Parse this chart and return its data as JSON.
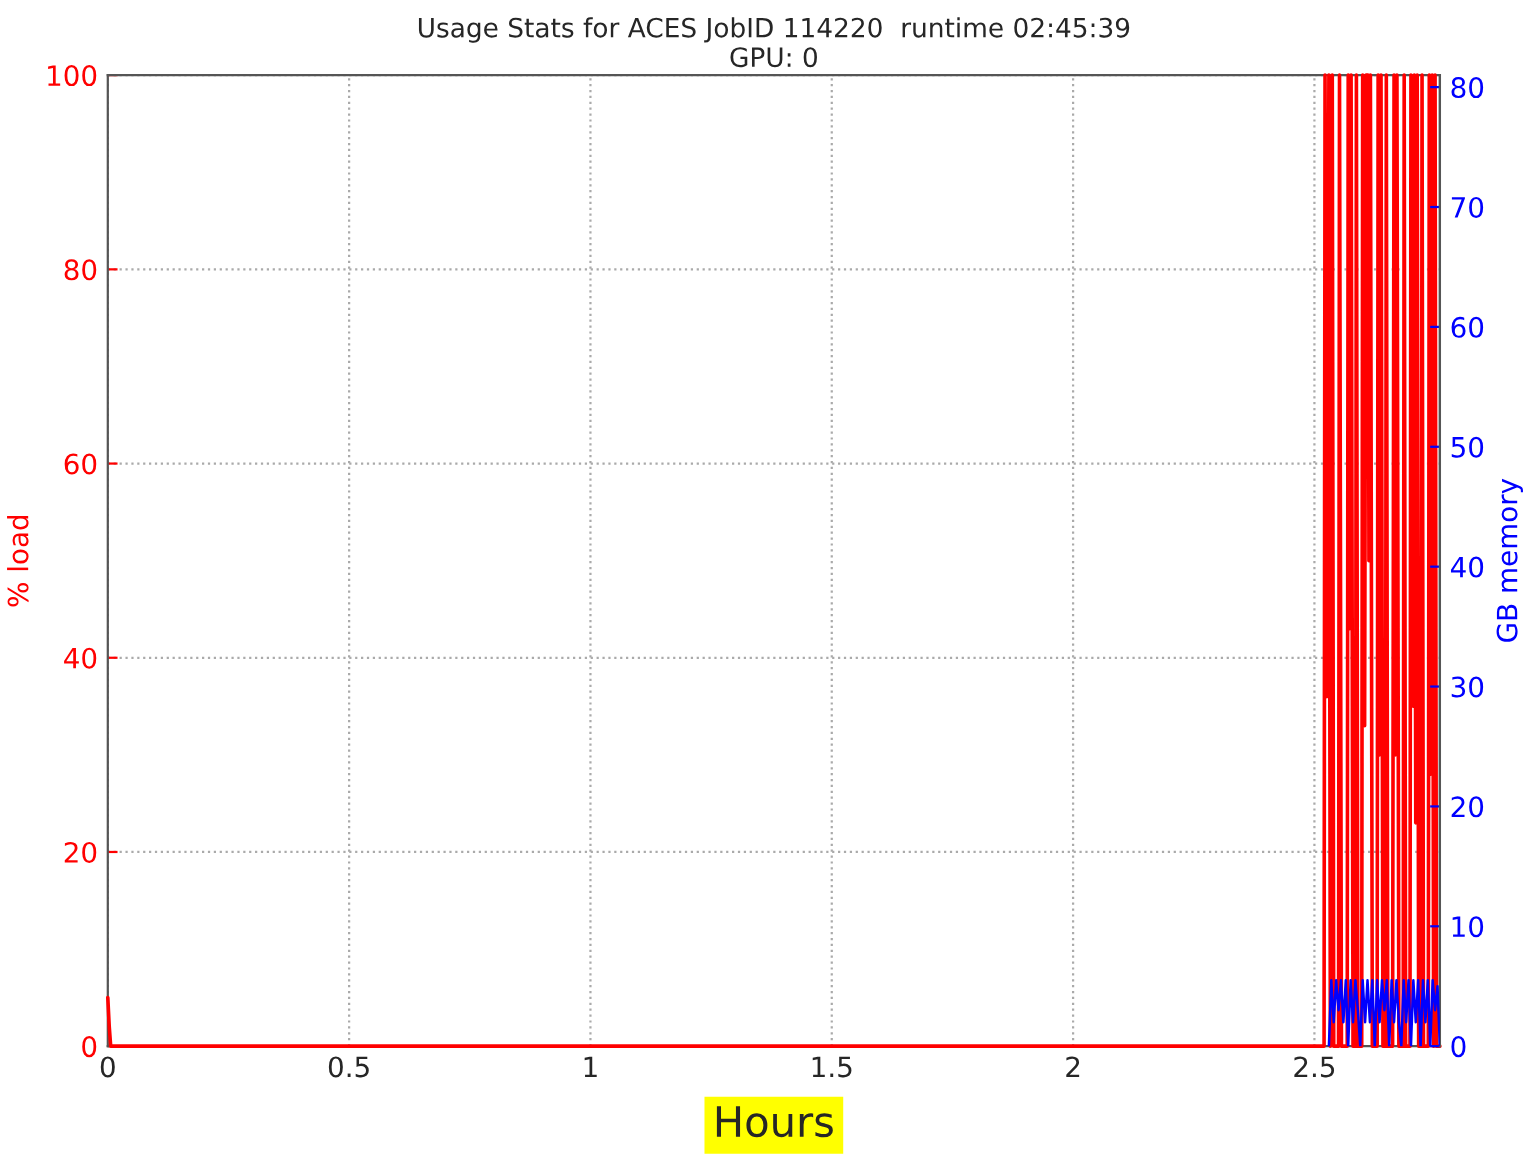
{
  "chart_data": {
    "type": "line",
    "title": "Usage Stats for ACES JobID 114220  runtime 02:45:39",
    "subtitle": "GPU: 0",
    "xlabel": "Hours",
    "ylabel": "% load",
    "y2label": "GB memory",
    "xlim": [
      0,
      2.76
    ],
    "xticks": [
      0,
      0.5,
      1,
      1.5,
      2,
      2.5
    ],
    "ylim": [
      0,
      100
    ],
    "yticks": [
      0,
      20,
      40,
      60,
      80,
      100
    ],
    "y2lim": [
      0,
      81
    ],
    "y2ticks": [
      0,
      10,
      20,
      30,
      40,
      50,
      60,
      70,
      80
    ],
    "grid": true,
    "legend": false,
    "marker": "none",
    "line_style": "solid",
    "series": [
      {
        "color": "#ff0000",
        "x": [
          0,
          0.003,
          0.006,
          2.52,
          2.522,
          2.526,
          2.53,
          2.533,
          2.537,
          2.54,
          2.55,
          2.552,
          2.556,
          2.568,
          2.57,
          2.573,
          2.576,
          2.58,
          2.585,
          2.587,
          2.59,
          2.598,
          2.6,
          2.604,
          2.607,
          2.611,
          2.613,
          2.616,
          2.62,
          2.63,
          2.632,
          2.635,
          2.638,
          2.642,
          2.647,
          2.649,
          2.652,
          2.662,
          2.665,
          2.668,
          2.671,
          2.675,
          2.684,
          2.686,
          2.689,
          2.698,
          2.7,
          2.703,
          2.705,
          2.707,
          2.71,
          2.713,
          2.716,
          2.721,
          2.723,
          2.726,
          2.736,
          2.738,
          2.741,
          2.744,
          2.747,
          2.75,
          2.753,
          2.76
        ],
        "values": [
          5,
          2,
          0,
          0,
          100,
          36,
          100,
          0,
          100,
          0,
          0,
          100,
          0,
          0,
          100,
          43,
          100,
          0,
          0,
          100,
          0,
          0,
          100,
          33,
          100,
          100,
          50,
          100,
          0,
          0,
          100,
          30,
          100,
          0,
          0,
          100,
          0,
          0,
          100,
          30,
          100,
          0,
          0,
          100,
          0,
          0,
          100,
          72,
          35,
          100,
          23,
          100,
          0,
          0,
          100,
          0,
          0,
          100,
          28,
          100,
          0,
          100,
          0,
          0
        ]
      },
      {
        "color": "#0000ff",
        "axis": "y2",
        "x": [
          2.53,
          2.535,
          2.54,
          2.545,
          2.55,
          2.555,
          2.56,
          2.565,
          2.57,
          2.575,
          2.58,
          2.585,
          2.59,
          2.595,
          2.6,
          2.605,
          2.61,
          2.615,
          2.62,
          2.625,
          2.63,
          2.635,
          2.64,
          2.645,
          2.65,
          2.655,
          2.66,
          2.665,
          2.67,
          2.675,
          2.68,
          2.685,
          2.69,
          2.695,
          2.7,
          2.705,
          2.71,
          2.715,
          2.72,
          2.725,
          2.73,
          2.735,
          2.74,
          2.745,
          2.75,
          2.755,
          2.76
        ],
        "values": [
          0,
          5.5,
          2,
          5.5,
          3,
          5.5,
          2,
          5.5,
          0,
          5.5,
          2,
          5.5,
          3,
          0,
          5.5,
          2,
          5.5,
          2,
          5.5,
          0,
          5.5,
          2,
          5.5,
          3,
          5.5,
          0,
          5.5,
          2,
          5.5,
          2,
          0,
          5.5,
          2,
          5.5,
          0,
          5.5,
          2,
          5.5,
          0,
          5.5,
          2,
          5.5,
          0,
          5.5,
          3,
          5,
          0
        ]
      }
    ]
  }
}
